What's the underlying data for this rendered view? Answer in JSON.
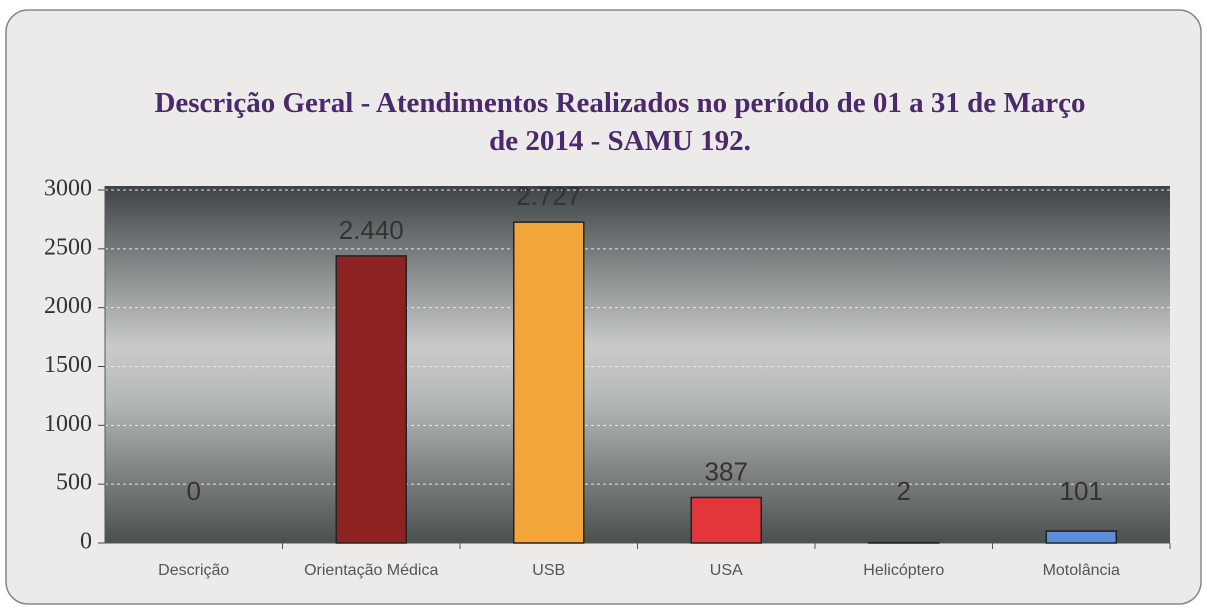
{
  "chart_data": {
    "type": "bar",
    "title": "Descrição Geral - Atendimentos Realizados no período de 01 a 31 de Março de 2014 - SAMU 192.",
    "categories": [
      "Descrição",
      "Orientação Médica",
      "USB",
      "USA",
      "Helicóptero",
      "Motolância"
    ],
    "values": [
      0,
      2440,
      2727,
      387,
      2,
      101
    ],
    "value_labels": [
      "0",
      "2.440",
      "2.727",
      "387",
      "2",
      "101"
    ],
    "colors": [
      "#888888",
      "#8c2222",
      "#f2a63a",
      "#e2363a",
      "#3a3a3a",
      "#5b8fd6"
    ],
    "ylim": [
      0,
      3000
    ],
    "yticks": [
      0,
      500,
      1000,
      1500,
      2000,
      2500,
      3000
    ],
    "grid": true
  }
}
